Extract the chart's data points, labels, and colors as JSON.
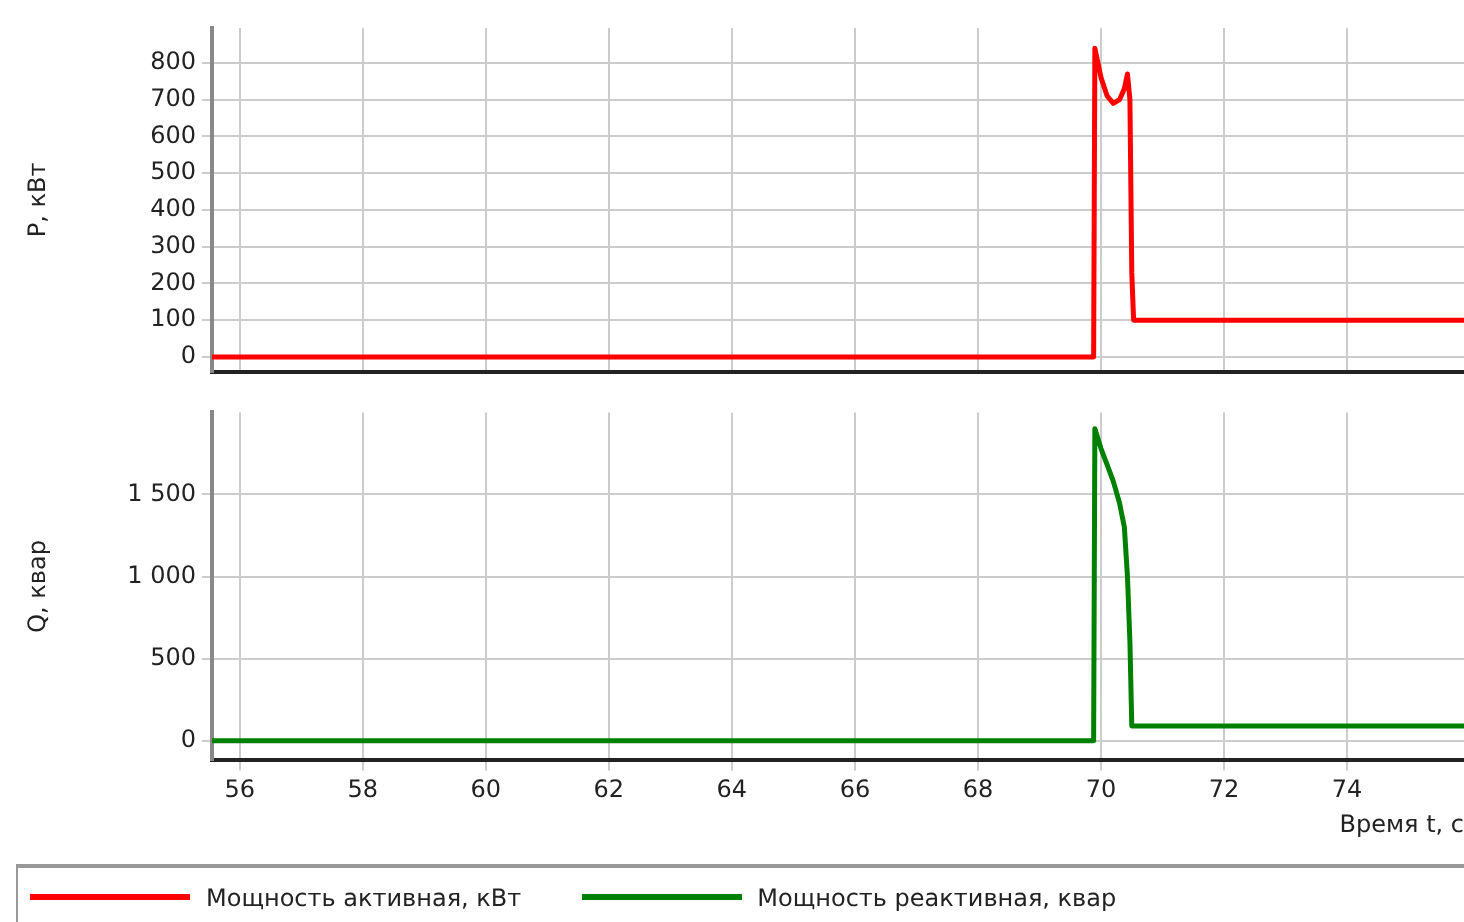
{
  "chart_data": [
    {
      "type": "line",
      "ylabel": "P, кВт",
      "xlim": [
        55.55,
        75.9
      ],
      "xticks": [
        56,
        58,
        60,
        62,
        64,
        66,
        68,
        70,
        72,
        74
      ],
      "ylim": [
        -40,
        895
      ],
      "yticks": [
        0,
        100,
        200,
        300,
        400,
        500,
        600,
        700,
        800
      ],
      "grid": true,
      "tick_labels": "y",
      "legend": "bottom",
      "marker": "none",
      "series": [
        {
          "name": "Мощность активная, кВт",
          "color": "#ff0000",
          "x": [
            55.55,
            69.88,
            69.9,
            70.0,
            70.1,
            70.2,
            70.3,
            70.38,
            70.43,
            70.47,
            70.5,
            70.53,
            75.9
          ],
          "values": [
            0,
            0,
            840,
            760,
            710,
            690,
            700,
            730,
            770,
            700,
            230,
            100,
            100
          ]
        }
      ]
    },
    {
      "type": "line",
      "ylabel": "Q, квар",
      "xlabel": "Время t, с",
      "xlim": [
        55.55,
        75.9
      ],
      "xticks": [
        56,
        58,
        60,
        62,
        64,
        66,
        68,
        70,
        72,
        74
      ],
      "ylim": [
        -120,
        2000
      ],
      "yticks": [
        {
          "value": 0,
          "label": "0"
        },
        {
          "value": 500,
          "label": "500"
        },
        {
          "value": 1000,
          "label": "1 000"
        },
        {
          "value": 1500,
          "label": "1 500"
        }
      ],
      "grid": true,
      "legend": "bottom",
      "marker": "none",
      "series": [
        {
          "name": "Мощность реактивная, квар",
          "color": "#008000",
          "x": [
            55.55,
            69.88,
            69.9,
            70.0,
            70.1,
            70.2,
            70.3,
            70.38,
            70.43,
            70.47,
            70.5,
            75.9
          ],
          "values": [
            0,
            0,
            1900,
            1780,
            1680,
            1580,
            1450,
            1300,
            1000,
            600,
            90,
            90
          ]
        }
      ]
    }
  ]
}
